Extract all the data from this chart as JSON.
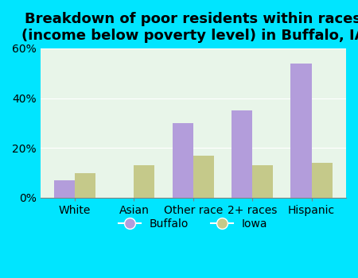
{
  "title": "Breakdown of poor residents within races\n(income below poverty level) in Buffalo, IA",
  "categories": [
    "White",
    "Asian",
    "Other race",
    "2+ races",
    "Hispanic"
  ],
  "buffalo_values": [
    7,
    0,
    30,
    35,
    54
  ],
  "iowa_values": [
    10,
    13,
    17,
    13,
    14
  ],
  "buffalo_color": "#b39ddb",
  "iowa_color": "#c5c98a",
  "background_outer": "#00e5ff",
  "background_plot": "#e8f5e9",
  "ylim": [
    0,
    60
  ],
  "yticks": [
    0,
    20,
    40,
    60
  ],
  "ytick_labels": [
    "0%",
    "20%",
    "40%",
    "60%"
  ],
  "bar_width": 0.35,
  "legend_labels": [
    "Buffalo",
    "Iowa"
  ],
  "title_fontsize": 13,
  "tick_fontsize": 10
}
